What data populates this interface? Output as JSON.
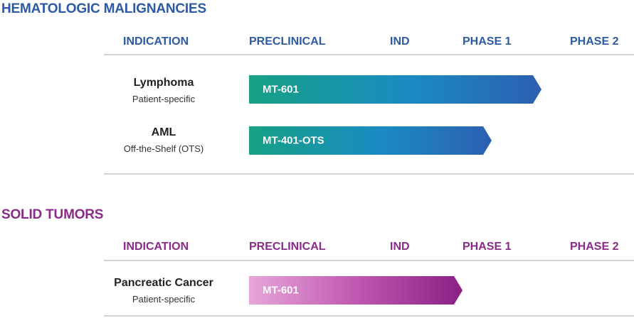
{
  "sections": [
    {
      "title": "HEMATOLOGIC MALIGNANCIES",
      "headers": [
        "INDICATION",
        "PRECLINICAL",
        "IND",
        "PHASE 1",
        "PHASE 2"
      ],
      "rows": [
        {
          "indication": "Lymphoma",
          "subtitle": "Patient-specific",
          "program": "MT-601"
        },
        {
          "indication": "AML",
          "subtitle": "Off-the-Shelf (OTS)",
          "program": "MT-401-OTS"
        }
      ]
    },
    {
      "title": "SOLID TUMORS",
      "headers": [
        "INDICATION",
        "PRECLINICAL",
        "IND",
        "PHASE 1",
        "PHASE 2"
      ],
      "rows": [
        {
          "indication": "Pancreatic Cancer",
          "subtitle": "Patient-specific",
          "program": "MT-601"
        }
      ]
    }
  ],
  "colors": {
    "heme_accent": "#2c5aa6",
    "solid_accent": "#8b2a8a",
    "heme_bar_start": "#16a184",
    "heme_bar_end": "#2d5fb0",
    "solid_bar_start": "#e7a6d9",
    "solid_bar_end": "#8a1f84"
  }
}
